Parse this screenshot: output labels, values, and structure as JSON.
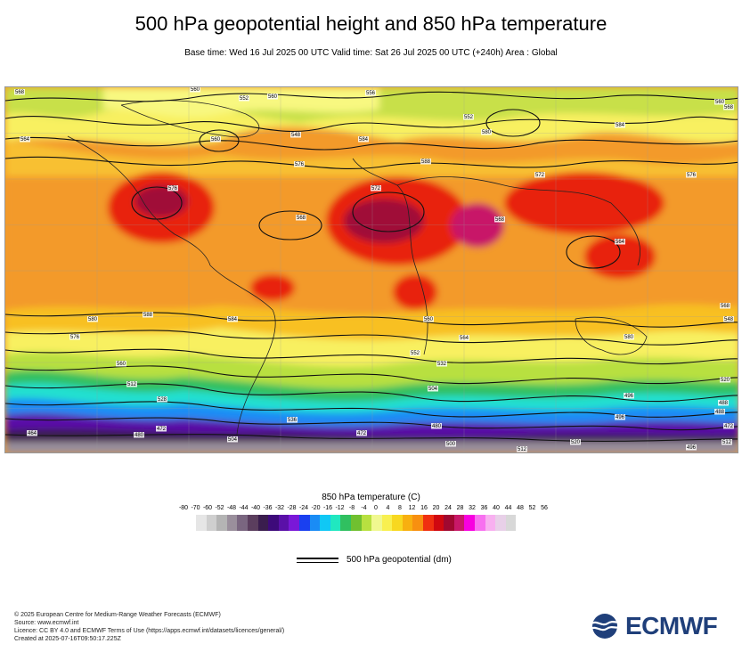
{
  "title": "500 hPa geopotential height and 850 hPa temperature",
  "subtitle": "Base time: Wed 16 Jul 2025 00 UTC Valid time: Sat 26 Jul 2025 00 UTC (+240h) Area : Global",
  "map": {
    "contour_labels": [
      "568",
      "560",
      "552",
      "560",
      "556",
      "560",
      "548",
      "552",
      "568",
      "560",
      "564",
      "576",
      "584",
      "588",
      "580",
      "584",
      "572",
      "576",
      "564",
      "568",
      "576",
      "572",
      "568",
      "580",
      "576",
      "588",
      "584",
      "560",
      "564",
      "580",
      "568",
      "548",
      "552",
      "560",
      "532",
      "520",
      "512",
      "504",
      "496",
      "488",
      "528",
      "536",
      "496",
      "488",
      "472",
      "480",
      "472",
      "464",
      "480",
      "472",
      "504",
      "500",
      "512",
      "520",
      "496",
      "512"
    ]
  },
  "legend": {
    "title": "850 hPa temperature (C)",
    "ticks": [
      "-80",
      "-70",
      "-60",
      "-52",
      "-48",
      "-44",
      "-40",
      "-36",
      "-32",
      "-28",
      "-24",
      "-20",
      "-16",
      "-12",
      "-8",
      "-4",
      "0",
      "4",
      "8",
      "12",
      "16",
      "20",
      "24",
      "28",
      "32",
      "36",
      "40",
      "44",
      "48",
      "52",
      "56"
    ],
    "colors": [
      "#e6e6e6",
      "#cfcfcf",
      "#b4b4b4",
      "#9a8f9c",
      "#7a6680",
      "#5b3e5e",
      "#3a1d4e",
      "#3d0a7a",
      "#5a10a8",
      "#7a18d8",
      "#1a40f0",
      "#1a8cf5",
      "#10c8f5",
      "#20e8c0",
      "#30c060",
      "#70c030",
      "#b8e040",
      "#f0f890",
      "#f8f050",
      "#f8d820",
      "#f8b010",
      "#f89010",
      "#f03010",
      "#d00810",
      "#a00830",
      "#c81868",
      "#f800e0",
      "#f870f0",
      "#f8b0f0",
      "#e8d0e8",
      "#d8d8d8"
    ],
    "line_label": "500 hPa geopotential (dm)"
  },
  "footer": {
    "lines": [
      "© 2025 European Centre for Medium-Range Weather Forecasts (ECMWF)",
      "Source: www.ecmwf.int",
      "Licence: CC BY 4.0 and ECMWF Terms of Use (https://apps.ecmwf.int/datasets/licences/general/)",
      "Created at 2025-07-16T09:50:17.225Z"
    ]
  },
  "logo": {
    "text": "ECMWF",
    "color": "#1f3f7a"
  }
}
